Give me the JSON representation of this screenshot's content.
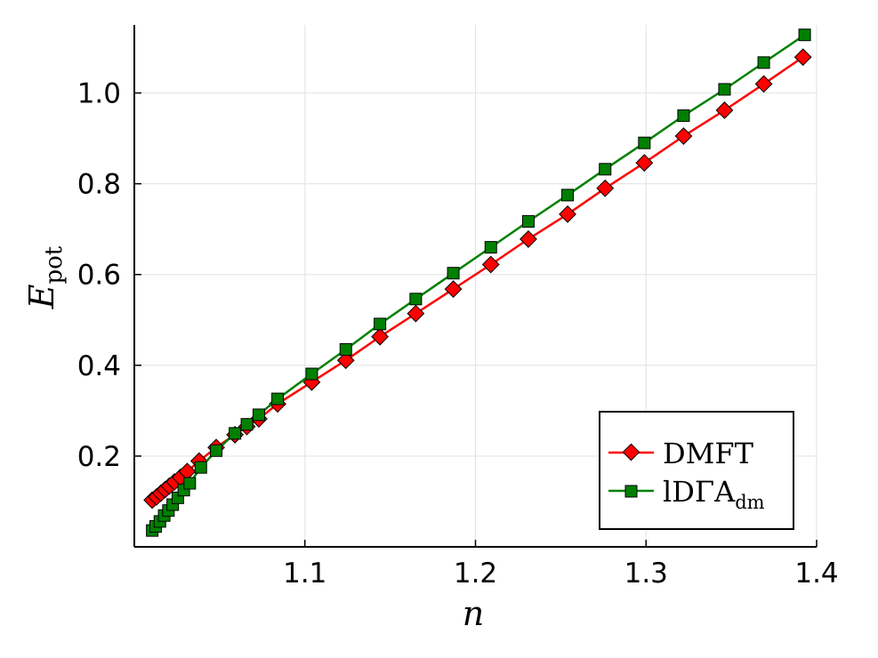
{
  "chart_data": {
    "type": "line",
    "xlabel": "n",
    "ylabel": {
      "main": "E",
      "sub": "pot"
    },
    "xlim": [
      1.0,
      1.4
    ],
    "ylim": [
      0.0,
      1.15
    ],
    "xticks": [
      1.1,
      1.2,
      1.3,
      1.4
    ],
    "xtick_labels": [
      "1.1",
      "1.2",
      "1.3",
      "1.4"
    ],
    "yticks": [
      0.2,
      0.4,
      0.6,
      0.8,
      1.0
    ],
    "ytick_labels": [
      "0.2",
      "0.4",
      "0.6",
      "0.8",
      "1.0"
    ],
    "grid": true,
    "legend_position": "bottom-right",
    "series": [
      {
        "name": "DMFT",
        "name_main": "DMFT",
        "color": "#ff0000",
        "marker": "diamond",
        "x": [
          1.0105,
          1.013,
          1.0155,
          1.018,
          1.0205,
          1.0235,
          1.027,
          1.031,
          1.038,
          1.048,
          1.059,
          1.066,
          1.073,
          1.084,
          1.104,
          1.124,
          1.144,
          1.165,
          1.187,
          1.209,
          1.231,
          1.254,
          1.276,
          1.299,
          1.322,
          1.346,
          1.369,
          1.392
        ],
        "y": [
          0.103,
          0.11,
          0.118,
          0.126,
          0.134,
          0.143,
          0.153,
          0.166,
          0.189,
          0.219,
          0.247,
          0.265,
          0.282,
          0.315,
          0.363,
          0.411,
          0.463,
          0.514,
          0.568,
          0.622,
          0.678,
          0.733,
          0.79,
          0.846,
          0.905,
          0.962,
          1.02,
          1.079
        ]
      },
      {
        "name": "lDΓAdm",
        "name_main": "lDΓA",
        "name_sub": "dm",
        "color": "#008000",
        "marker": "square",
        "x": [
          1.0105,
          1.0125,
          1.015,
          1.0175,
          1.02,
          1.0225,
          1.0255,
          1.029,
          1.0325,
          1.039,
          1.048,
          1.059,
          1.066,
          1.073,
          1.084,
          1.104,
          1.124,
          1.144,
          1.165,
          1.187,
          1.209,
          1.231,
          1.254,
          1.276,
          1.299,
          1.322,
          1.346,
          1.369,
          1.393
        ],
        "y": [
          0.036,
          0.045,
          0.056,
          0.069,
          0.08,
          0.093,
          0.108,
          0.125,
          0.14,
          0.175,
          0.212,
          0.25,
          0.27,
          0.291,
          0.326,
          0.381,
          0.435,
          0.491,
          0.546,
          0.603,
          0.66,
          0.717,
          0.775,
          0.832,
          0.89,
          0.95,
          1.008,
          1.067,
          1.128
        ]
      }
    ]
  }
}
